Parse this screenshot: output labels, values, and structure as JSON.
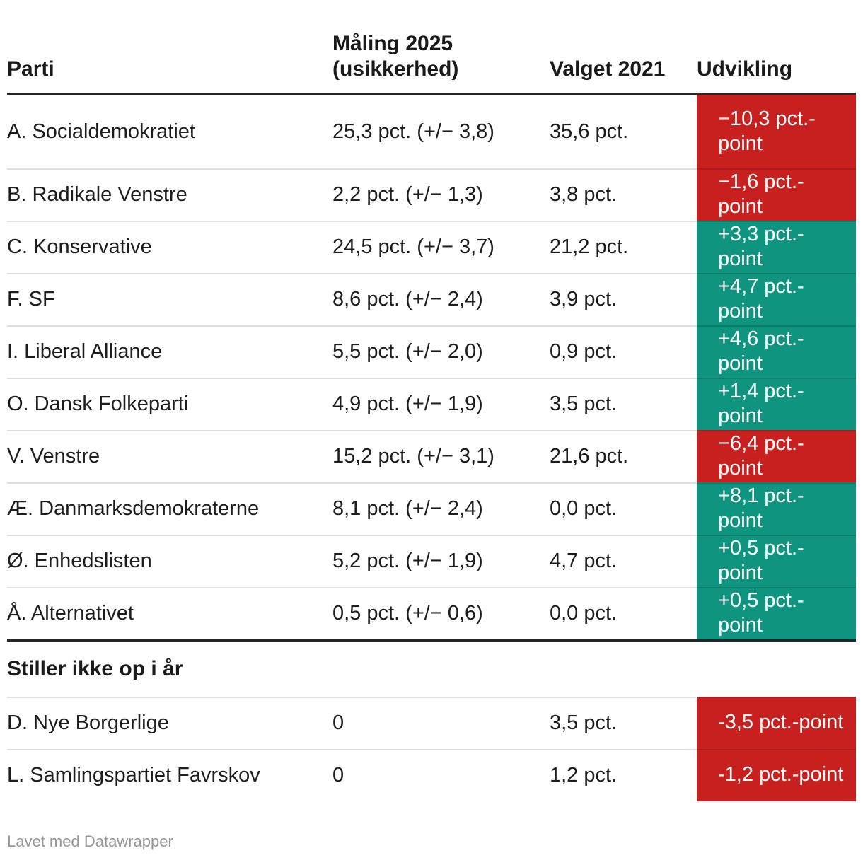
{
  "chart_data": {
    "type": "table",
    "columns": [
      "Parti",
      "Måling 2025 (usikkerhed)",
      "Valget 2021",
      "Udvikling"
    ],
    "sections": [
      {
        "title": "",
        "rows": [
          {
            "party": "A. Socialdemokratiet",
            "poll": "25,3 pct. (+/− 3,8)",
            "election": "35,6 pct.",
            "change": "−10,3 pct.-\npoint",
            "direction": "negative"
          },
          {
            "party": "B. Radikale Venstre",
            "poll": "2,2 pct. (+/− 1,3)",
            "election": "3,8 pct.",
            "change": "−1,6 pct.-point",
            "direction": "negative"
          },
          {
            "party": "C. Konservative",
            "poll": "24,5 pct. (+/− 3,7)",
            "election": "21,2 pct.",
            "change": "+3,3 pct.-point",
            "direction": "positive"
          },
          {
            "party": "F. SF",
            "poll": "8,6 pct. (+/− 2,4)",
            "election": "3,9 pct.",
            "change": "+4,7 pct.-point",
            "direction": "positive"
          },
          {
            "party": "I. Liberal Alliance",
            "poll": "5,5 pct. (+/− 2,0)",
            "election": "0,9 pct.",
            "change": "+4,6 pct.-point",
            "direction": "positive"
          },
          {
            "party": "O. Dansk Folkeparti",
            "poll": "4,9 pct. (+/− 1,9)",
            "election": "3,5 pct.",
            "change": "+1,4 pct.-point",
            "direction": "positive"
          },
          {
            "party": "V. Venstre",
            "poll": "15,2 pct. (+/− 3,1)",
            "election": "21,6 pct.",
            "change": "−6,4 pct.-point",
            "direction": "negative"
          },
          {
            "party": "Æ. Danmarksdemokraterne",
            "poll": "8,1 pct. (+/− 2,4)",
            "election": "0,0 pct.",
            "change": "+8,1 pct.-point",
            "direction": "positive"
          },
          {
            "party": "Ø. Enhedslisten",
            "poll": "5,2 pct. (+/− 1,9)",
            "election": "4,7 pct.",
            "change": "+0,5 pct.-point",
            "direction": "positive"
          },
          {
            "party": "Å. Alternativet",
            "poll": "0,5 pct. (+/− 0,6)",
            "election": "0,0 pct.",
            "change": "+0,5 pct.-point",
            "direction": "positive"
          }
        ]
      },
      {
        "title": "Stiller ikke op i år",
        "rows": [
          {
            "party": "D. Nye Borgerlige",
            "poll": "0",
            "election": "3,5 pct.",
            "change": "-3,5 pct.-point",
            "direction": "negative"
          },
          {
            "party": "L. Samlingspartiet Favrskov",
            "poll": "0",
            "election": "1,2 pct.",
            "change": "-1,2 pct.-point",
            "direction": "negative"
          }
        ]
      }
    ],
    "layout_hints": {
      "value_alignment": "left",
      "change_column_style": "colored-cell",
      "grid": "horizontal-dividers"
    }
  },
  "footer": {
    "credit": "Lavet med Datawrapper"
  },
  "colors": {
    "negative": "#c7201e",
    "positive": "#0f947f",
    "text": "#1d1d1d",
    "heading": "#1a1a1a",
    "rule": "#262626",
    "muted": "#969696"
  }
}
